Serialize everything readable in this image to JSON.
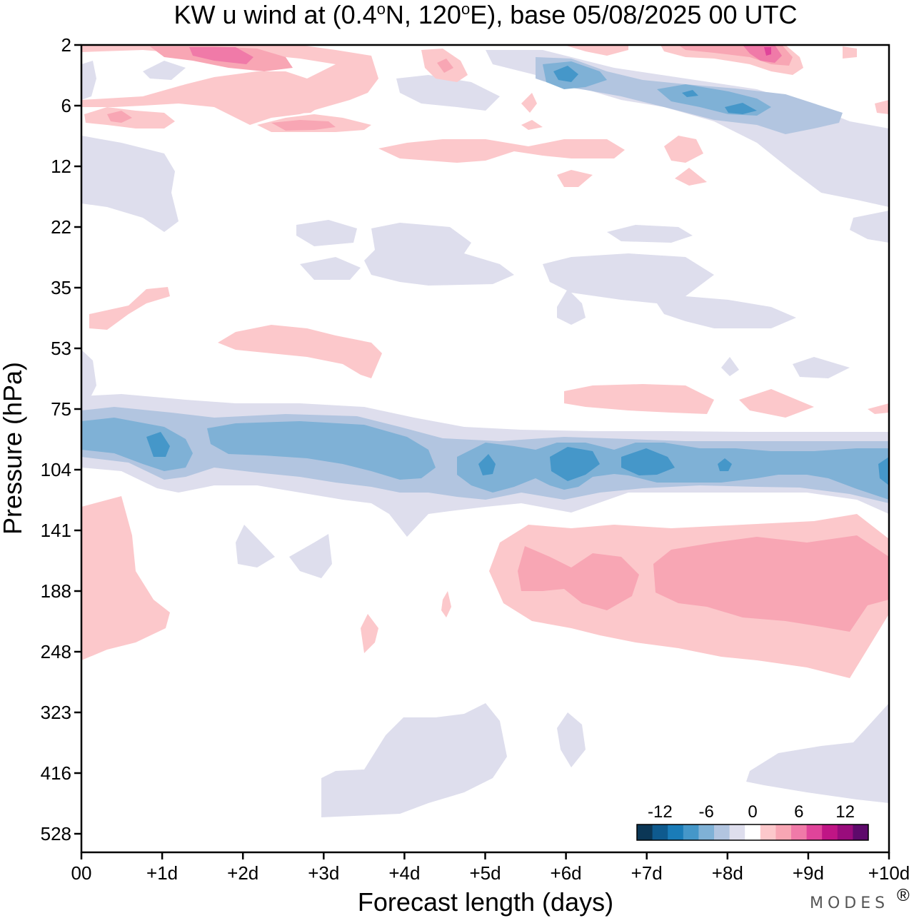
{
  "chart_data": {
    "type": "contour",
    "title": "KW u wind at (0.4°N, 120°E),  base 05/08/2025  00 UTC",
    "title_parts": {
      "pre": "KW u wind at (0.4",
      "deg": "o",
      "lat_suffix": "N, 120",
      "lon_suffix": "E),  base 05/08/2025  00 UTC"
    },
    "xlabel": "Forecast length (days)",
    "ylabel": "Pressure (hPa)",
    "x_ticks": [
      "00",
      "+1d",
      "+2d",
      "+3d",
      "+4d",
      "+5d",
      "+6d",
      "+7d",
      "+8d",
      "+9d",
      "+10d"
    ],
    "x_range_days": [
      0,
      10
    ],
    "y_ticks": [
      "2",
      "6",
      "12",
      "22",
      "35",
      "53",
      "75",
      "104",
      "141",
      "188",
      "248",
      "323",
      "416",
      "528"
    ],
    "y_range_hPa": [
      2,
      528
    ],
    "colorbar": {
      "labels": [
        "-12",
        "-6",
        "0",
        "6",
        "12"
      ],
      "levels": [
        -15,
        -13,
        -11,
        -9,
        -7,
        -5,
        -3,
        -1,
        1,
        3,
        5,
        7,
        9,
        11,
        13,
        15
      ],
      "colors": [
        "#0b3756",
        "#0e5a8e",
        "#1a7cb8",
        "#4597c9",
        "#7fb1d6",
        "#b2c5e0",
        "#dedeed",
        "#ffffff",
        "#fcc8cb",
        "#f8a6b4",
        "#f07aa8",
        "#e0449a",
        "#c01585",
        "#990c7c",
        "#5e0a6b"
      ]
    },
    "regions": [
      {
        "name": "upper-strat-westerly",
        "level": 1,
        "x": [
          1.0,
          3.6
        ],
        "p": [
          2,
          9
        ],
        "max": 7
      },
      {
        "name": "upper-strat-easterly",
        "level": -1,
        "x": [
          5.0,
          9.6
        ],
        "p": [
          2,
          8
        ],
        "max": -12
      },
      {
        "name": "upper-right-westerly",
        "level": 1,
        "x": [
          7.4,
          8.8
        ],
        "p": [
          2,
          4
        ],
        "max": 12
      },
      {
        "name": "tropopause-easterly-band",
        "level": -1,
        "x": [
          0,
          10
        ],
        "p": [
          75,
          130
        ],
        "max": -12
      },
      {
        "name": "upper-trop-westerly",
        "level": 1,
        "x": [
          5.0,
          10
        ],
        "p": [
          135,
          310
        ],
        "max": 7
      },
      {
        "name": "left-trop-westerly",
        "level": 1,
        "x": [
          0,
          1.1
        ],
        "p": [
          130,
          245
        ],
        "max": 3
      },
      {
        "name": "mid-trop-easterly",
        "level": -1,
        "x": [
          3.0,
          5.3
        ],
        "p": [
          320,
          560
        ],
        "max": -3
      },
      {
        "name": "lower-right-easterly",
        "level": -1,
        "x": [
          8.2,
          10
        ],
        "p": [
          320,
          528
        ],
        "max": -3
      },
      {
        "name": "strat-53-westerly",
        "level": 1,
        "x": [
          1.7,
          3.7
        ],
        "p": [
          45,
          70
        ],
        "max": 3
      },
      {
        "name": "strat-80-westerly",
        "level": 1,
        "x": [
          6.0,
          8.1
        ],
        "p": [
          65,
          78
        ],
        "max": 3
      }
    ]
  },
  "branding": {
    "text": "MODES",
    "mark": "®"
  }
}
